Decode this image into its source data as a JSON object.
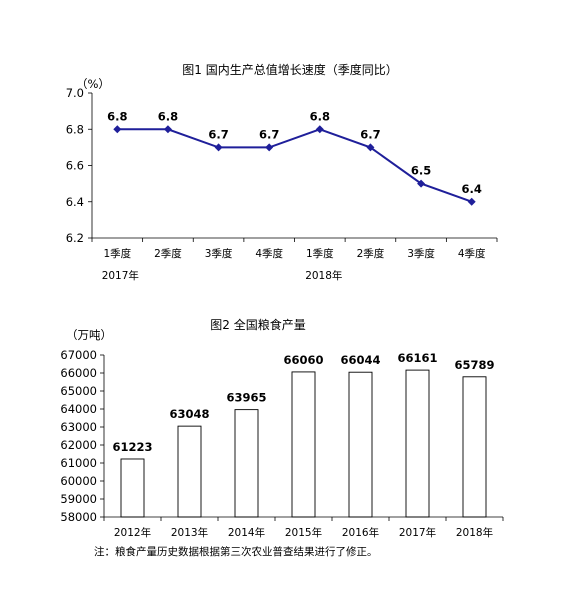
{
  "chart_data": [
    {
      "type": "line",
      "title": "图1   国内生产总值增长速度（季度同比）",
      "ylabel": "（%）",
      "categories": [
        "1季度",
        "2季度",
        "3季度",
        "4季度",
        "1季度",
        "2季度",
        "3季度",
        "4季度"
      ],
      "groups": [
        "2017年",
        "2018年"
      ],
      "values": [
        6.8,
        6.8,
        6.7,
        6.7,
        6.8,
        6.7,
        6.5,
        6.4
      ],
      "data_labels": [
        "6.8",
        "6.8",
        "6.7",
        "6.7",
        "6.8",
        "6.7",
        "6.5",
        "6.4"
      ],
      "ylim": [
        6.2,
        7.0
      ],
      "yticks": [
        "7.0",
        "6.8",
        "6.6",
        "6.4",
        "6.2"
      ],
      "grid": false,
      "color": "#1f1f9a"
    },
    {
      "type": "bar",
      "title": "图2   全国粮食产量",
      "ylabel": "（万吨）",
      "categories": [
        "2012年",
        "2013年",
        "2014年",
        "2015年",
        "2016年",
        "2017年",
        "2018年"
      ],
      "values": [
        61223,
        63048,
        63965,
        66060,
        66044,
        66161,
        65789
      ],
      "data_labels": [
        "61223",
        "63048",
        "63965",
        "66060",
        "66044",
        "66161",
        "65789"
      ],
      "ylim": [
        58000,
        67000
      ],
      "yticks": [
        "67000",
        "66000",
        "65000",
        "64000",
        "63000",
        "62000",
        "61000",
        "60000",
        "59000",
        "58000"
      ],
      "grid": false,
      "note": "注：粮食产量历史数据根据第三次农业普查结果进行了修正。"
    }
  ]
}
